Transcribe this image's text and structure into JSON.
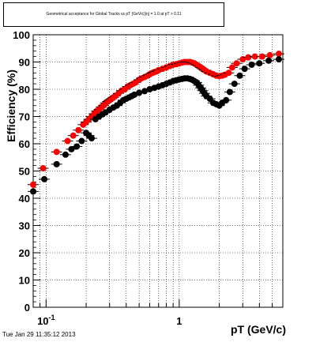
{
  "title": "Geometrical acceptance for Global Tracks vs pT (GeV/c)|η| = 1.0 at pT > 0.11",
  "timestamp": "Tue Jan 29 11:35:12 2013",
  "chart_data": {
    "type": "scatter",
    "title": "Geometrical acceptance for Global Tracks vs pT (GeV/c)|η| = 1.0 at pT > 0.11",
    "xlabel": "pT (GeV/c)",
    "ylabel": "Efficiency (%)",
    "xscale": "log",
    "xlim": [
      0.08,
      6.0
    ],
    "ylim": [
      0,
      100
    ],
    "yticks": [
      0,
      10,
      20,
      30,
      40,
      50,
      60,
      70,
      80,
      90,
      100
    ],
    "xtick_labels": [
      {
        "value": 0.1,
        "label": "10",
        "sup": "-1"
      },
      {
        "value": 1,
        "label": "1",
        "sup": ""
      }
    ],
    "grid": true,
    "legend": "none",
    "series": [
      {
        "color": "#ff0000",
        "points": [
          [
            0.08,
            45
          ],
          [
            0.095,
            51
          ],
          [
            0.12,
            57
          ],
          [
            0.145,
            61
          ],
          [
            0.16,
            63
          ],
          [
            0.175,
            65
          ],
          [
            0.19,
            67
          ],
          [
            0.2,
            68
          ],
          [
            0.21,
            69
          ],
          [
            0.22,
            70
          ],
          [
            0.23,
            71
          ],
          [
            0.24,
            72
          ],
          [
            0.25,
            72.5
          ],
          [
            0.26,
            73.5
          ],
          [
            0.27,
            74
          ],
          [
            0.28,
            75
          ],
          [
            0.29,
            75.5
          ],
          [
            0.3,
            76
          ],
          [
            0.31,
            76.5
          ],
          [
            0.32,
            77
          ],
          [
            0.33,
            77.5
          ],
          [
            0.35,
            78.5
          ],
          [
            0.37,
            79.5
          ],
          [
            0.39,
            80
          ],
          [
            0.41,
            81
          ],
          [
            0.43,
            81.5
          ],
          [
            0.45,
            82
          ],
          [
            0.47,
            82.5
          ],
          [
            0.5,
            83.5
          ],
          [
            0.52,
            84
          ],
          [
            0.55,
            84.5
          ],
          [
            0.58,
            85
          ],
          [
            0.6,
            85.5
          ],
          [
            0.63,
            86
          ],
          [
            0.65,
            86.3
          ],
          [
            0.68,
            86.6
          ],
          [
            0.7,
            87
          ],
          [
            0.75,
            87.5
          ],
          [
            0.8,
            88
          ],
          [
            0.85,
            88.5
          ],
          [
            0.9,
            89
          ],
          [
            0.95,
            89.2
          ],
          [
            1.0,
            89.5
          ],
          [
            1.05,
            89.8
          ],
          [
            1.1,
            90
          ],
          [
            1.15,
            90
          ],
          [
            1.2,
            90
          ],
          [
            1.25,
            89.8
          ],
          [
            1.3,
            89.5
          ],
          [
            1.35,
            89
          ],
          [
            1.4,
            88.5
          ],
          [
            1.45,
            88
          ],
          [
            1.5,
            87.5
          ],
          [
            1.55,
            87
          ],
          [
            1.6,
            86.5
          ],
          [
            1.7,
            86
          ],
          [
            1.8,
            85.5
          ],
          [
            1.9,
            85
          ],
          [
            2.0,
            84.8
          ],
          [
            2.1,
            85
          ],
          [
            2.2,
            85.3
          ],
          [
            2.35,
            86
          ],
          [
            2.5,
            88
          ],
          [
            2.7,
            89.5
          ],
          [
            3.0,
            91
          ],
          [
            3.3,
            91.7
          ],
          [
            3.7,
            92
          ],
          [
            4.2,
            92
          ],
          [
            4.8,
            92.5
          ],
          [
            5.6,
            93
          ]
        ]
      },
      {
        "color": "#000000",
        "points": [
          [
            0.08,
            42.5
          ],
          [
            0.097,
            47
          ],
          [
            0.12,
            52.5
          ],
          [
            0.14,
            56
          ],
          [
            0.155,
            58
          ],
          [
            0.17,
            59
          ],
          [
            0.185,
            61
          ],
          [
            0.2,
            64
          ],
          [
            0.21,
            63
          ],
          [
            0.22,
            62
          ],
          [
            0.235,
            69
          ],
          [
            0.25,
            70
          ],
          [
            0.265,
            70.8
          ],
          [
            0.28,
            71.5
          ],
          [
            0.3,
            72.5
          ],
          [
            0.32,
            73.3
          ],
          [
            0.34,
            74
          ],
          [
            0.36,
            75
          ],
          [
            0.38,
            76
          ],
          [
            0.4,
            76.5
          ],
          [
            0.42,
            77
          ],
          [
            0.44,
            77.5
          ],
          [
            0.46,
            78
          ],
          [
            0.5,
            78.7
          ],
          [
            0.55,
            79.3
          ],
          [
            0.6,
            80
          ],
          [
            0.65,
            80.5
          ],
          [
            0.7,
            81
          ],
          [
            0.75,
            81.5
          ],
          [
            0.8,
            82
          ],
          [
            0.85,
            82.5
          ],
          [
            0.9,
            83
          ],
          [
            0.95,
            83.3
          ],
          [
            1.0,
            83.6
          ],
          [
            1.05,
            83.8
          ],
          [
            1.1,
            84
          ],
          [
            1.15,
            84
          ],
          [
            1.2,
            83.8
          ],
          [
            1.25,
            83.5
          ],
          [
            1.3,
            83
          ],
          [
            1.35,
            82.5
          ],
          [
            1.4,
            81.5
          ],
          [
            1.45,
            80.5
          ],
          [
            1.5,
            79.5
          ],
          [
            1.55,
            78.5
          ],
          [
            1.6,
            77.5
          ],
          [
            1.7,
            76.5
          ],
          [
            1.8,
            75
          ],
          [
            1.9,
            74.5
          ],
          [
            2.0,
            74
          ],
          [
            2.1,
            75
          ],
          [
            2.25,
            76
          ],
          [
            2.4,
            79
          ],
          [
            2.6,
            82
          ],
          [
            2.85,
            85
          ],
          [
            3.1,
            87.5
          ],
          [
            3.5,
            89
          ],
          [
            4.0,
            89.5
          ],
          [
            4.7,
            90.5
          ],
          [
            5.6,
            91
          ]
        ]
      }
    ]
  }
}
